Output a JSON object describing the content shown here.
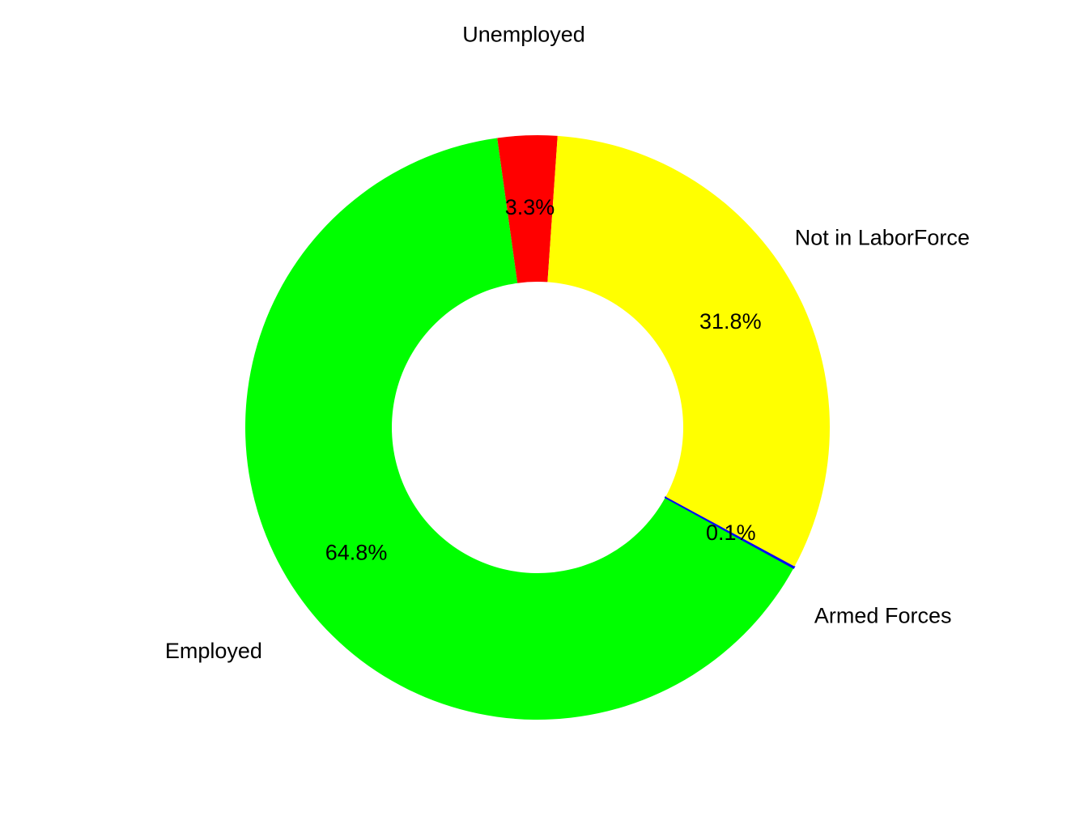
{
  "chart_data": {
    "type": "pie",
    "donut": true,
    "start_category": "Unemployed",
    "direction": "counter-clockwise",
    "slices": [
      {
        "category": "Unemployed",
        "value": 3.3,
        "label": "3.3%",
        "color": "#FF0000"
      },
      {
        "category": "Employed",
        "value": 64.8,
        "label": "64.8%",
        "color": "#00FF00"
      },
      {
        "category": "Armed Forces",
        "value": 0.1,
        "label": "0.1%",
        "color": "#0000FF"
      },
      {
        "category": "Not in LaborForce",
        "value": 31.8,
        "label": "31.8%",
        "color": "#FFFF00"
      }
    ],
    "legend": "none"
  }
}
